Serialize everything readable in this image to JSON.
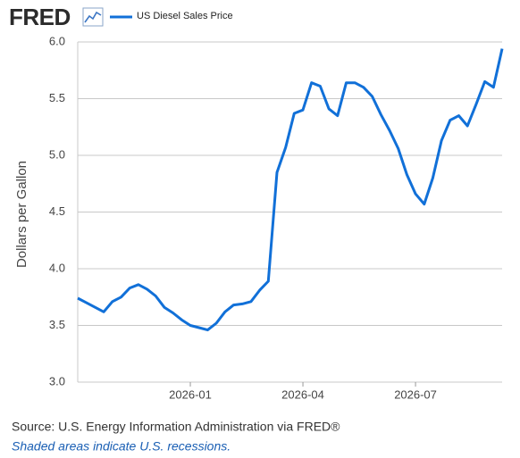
{
  "chart_data": {
    "type": "line",
    "logo": "FRED",
    "y_label": "Dollars per Gallon",
    "source": "Source: U.S. Energy Information Administration via FRED®",
    "note": "Shaded areas indicate U.S. recessions.",
    "categories": [
      null,
      null,
      null,
      null,
      null,
      null,
      null,
      null,
      null,
      null,
      null,
      null,
      null,
      "2026-01",
      null,
      null,
      null,
      null,
      null,
      null,
      null,
      null,
      null,
      null,
      null,
      null,
      "2026-04",
      null,
      null,
      null,
      null,
      null,
      null,
      null,
      null,
      null,
      null,
      null,
      null,
      "2026-07",
      null,
      null,
      null,
      null,
      null,
      null,
      null,
      null,
      null,
      null
    ],
    "series": [
      {
        "name": "US Diesel Sales Price",
        "color": "#1170d8",
        "values": [
          3.74,
          3.7,
          3.66,
          3.62,
          3.71,
          3.75,
          3.83,
          3.86,
          3.82,
          3.76,
          3.66,
          3.61,
          3.55,
          3.5,
          3.48,
          3.46,
          3.52,
          3.62,
          3.68,
          3.69,
          3.71,
          3.81,
          3.89,
          4.85,
          5.07,
          5.37,
          5.4,
          5.64,
          5.61,
          5.41,
          5.35,
          5.64,
          5.64,
          5.6,
          5.52,
          5.36,
          5.22,
          5.06,
          4.83,
          4.66,
          4.57,
          4.8,
          5.13,
          5.31,
          5.35,
          5.26,
          5.45,
          5.65,
          5.6,
          5.94
        ]
      }
    ],
    "ylim": [
      3.0,
      6.0
    ],
    "yticks": [
      {
        "value": 3.0,
        "label": "3.0"
      },
      3.5,
      {
        "value": 4.0,
        "label": "4.0"
      },
      4.5,
      {
        "value": 5.0,
        "label": "5.0"
      },
      5.5,
      {
        "value": 6.0,
        "label": "6.0"
      }
    ],
    "grid": true
  }
}
